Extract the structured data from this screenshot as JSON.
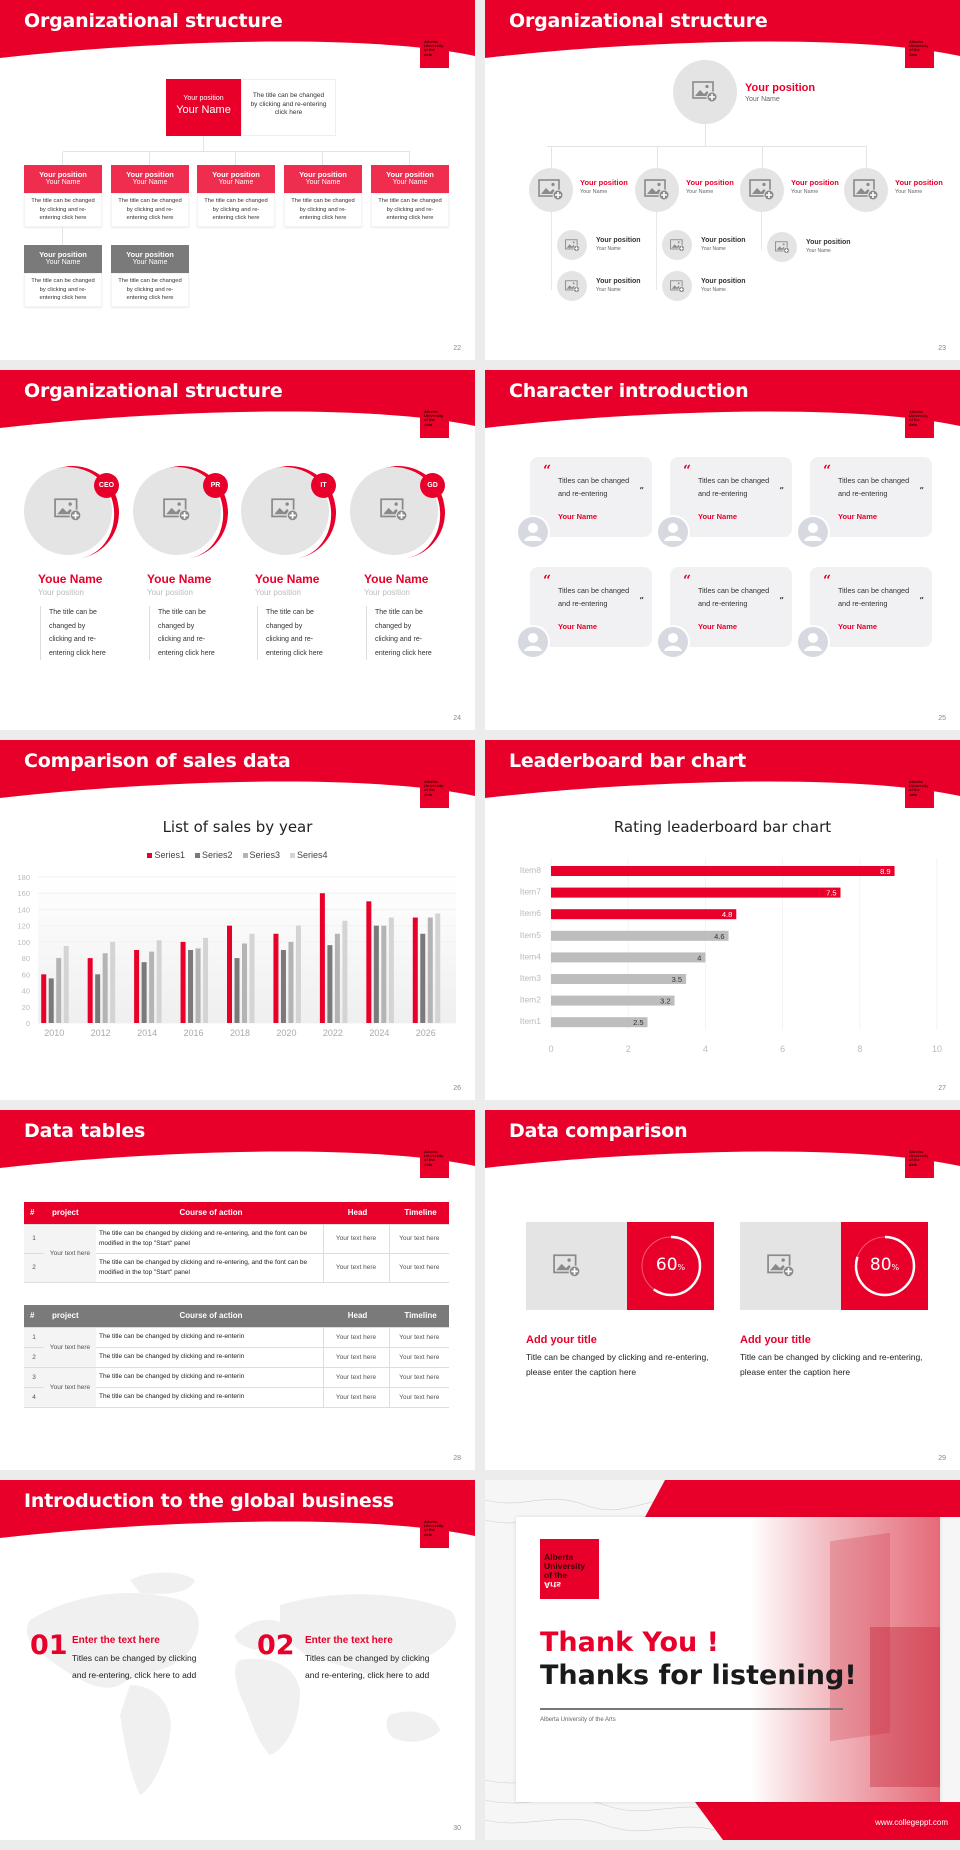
{
  "brand": {
    "accent": "#e8002a",
    "gray": "#7a7a7a",
    "logo_text": [
      "Alberta",
      "University",
      "of the",
      "Arts"
    ]
  },
  "slides": [
    {
      "page": "22",
      "title": "Organizational structure",
      "top": {
        "position": "Your position",
        "name": "Your Name",
        "desc": "The title can be changed by clicking and re-entering click here"
      },
      "nodes": [
        {
          "position": "Your position",
          "name": "Your Name",
          "desc": "The title can be changed by clicking and re-entering click here"
        },
        {
          "position": "Your position",
          "name": "Your Name",
          "desc": "The title can be changed by clicking and re-entering click here"
        },
        {
          "position": "Your position",
          "name": "Your Name",
          "desc": "The title can be changed by clicking and re-entering click here"
        },
        {
          "position": "Your position",
          "name": "Your Name",
          "desc": "The title can be changed by clicking and re-entering click here"
        },
        {
          "position": "Your position",
          "name": "Your Name",
          "desc": "The title can be changed by clicking and re-entering click here"
        },
        {
          "position": "Your position",
          "name": "Your Name",
          "desc": "The title can be changed by clicking and re-entering click here"
        },
        {
          "position": "Your position",
          "name": "Your Name",
          "desc": "The title can be changed by clicking and re-entering click here"
        }
      ]
    },
    {
      "page": "23",
      "title": "Organizational structure",
      "top": {
        "position": "Your position",
        "name": "Your Name"
      },
      "level2": [
        {
          "position": "Your position",
          "name": "Your Name"
        },
        {
          "position": "Your position",
          "name": "Your Name"
        },
        {
          "position": "Your position",
          "name": "Your Name"
        },
        {
          "position": "Your position",
          "name": "Your Name"
        }
      ],
      "level3": [
        {
          "position": "Your position",
          "name": "Your Name"
        },
        {
          "position": "Your position",
          "name": "Your Name"
        },
        {
          "position": "Your position",
          "name": "Your Name"
        },
        {
          "position": "Your position",
          "name": "Your Name"
        },
        {
          "position": "Your position",
          "name": "Your Name"
        }
      ]
    },
    {
      "page": "24",
      "title": "Organizational structure",
      "people": [
        {
          "badge": "CEO",
          "name": "Youe Name",
          "position": "Your position",
          "desc": "The title can be changed by clicking and re-entering click here"
        },
        {
          "badge": "PR",
          "name": "Youe Name",
          "position": "Your position",
          "desc": "The title can be changed by clicking and re-entering click here"
        },
        {
          "badge": "IT",
          "name": "Youe Name",
          "position": "Your position",
          "desc": "The title can be changed by clicking and re-entering click here"
        },
        {
          "badge": "GD",
          "name": "Youe Name",
          "position": "Your position",
          "desc": "The title can be changed by clicking and re-entering click here"
        }
      ]
    },
    {
      "page": "25",
      "title": "Character introduction",
      "cards": [
        {
          "quote": "Titles can be changed and re-entering",
          "name": "Your Name"
        },
        {
          "quote": "Titles can be changed and re-entering",
          "name": "Your Name"
        },
        {
          "quote": "Titles can be changed and re-entering",
          "name": "Your Name"
        },
        {
          "quote": "Titles can be changed and re-entering",
          "name": "Your Name"
        },
        {
          "quote": "Titles can be changed and re-entering",
          "name": "Your Name"
        },
        {
          "quote": "Titles can be changed and re-entering",
          "name": "Your Name"
        }
      ]
    },
    {
      "page": "26",
      "title": "Comparison of sales data"
    },
    {
      "page": "27",
      "title": "Leaderboard bar chart"
    },
    {
      "page": "28",
      "title": "Data tables",
      "table1": {
        "headers": [
          "#",
          "project",
          "Course of action",
          "Head",
          "Timeline"
        ],
        "group": "Your text here",
        "rows": [
          {
            "n": "1",
            "action": "The title can be changed by clicking and re-entering, and the font can be modified in the top \"Start\" panel",
            "head": "Your text here",
            "timeline": "Your text here"
          },
          {
            "n": "2",
            "action": "The title can be changed by clicking and re-entering, and the font can be modified in the top \"Start\" panel",
            "head": "Your text here",
            "timeline": "Your text here"
          }
        ]
      },
      "table2": {
        "headers": [
          "#",
          "project",
          "Course of action",
          "Head",
          "Timeline"
        ],
        "groups": [
          "Your text here",
          "Your text here"
        ],
        "rows": [
          {
            "n": "1",
            "action": "The title can be changed by clicking and re-enterin",
            "head": "Your text here",
            "timeline": "Your text here"
          },
          {
            "n": "2",
            "action": "The title can be changed by clicking and re-enterin",
            "head": "Your text here",
            "timeline": "Your text here"
          },
          {
            "n": "3",
            "action": "The title can be changed by clicking and re-enterin",
            "head": "Your text here",
            "timeline": "Your text here"
          },
          {
            "n": "4",
            "action": "The title can be changed by clicking and re-enterin",
            "head": "Your text here",
            "timeline": "Your text here"
          }
        ]
      }
    },
    {
      "page": "29",
      "title": "Data comparison",
      "items": [
        {
          "value": "60",
          "unit": "%",
          "title": "Add your title",
          "desc": "Title can be changed by clicking and re-entering, please enter the caption here"
        },
        {
          "value": "80",
          "unit": "%",
          "title": "Add your title",
          "desc": "Title can be changed by clicking and re-entering, please enter the caption here"
        }
      ]
    },
    {
      "page": "30",
      "title": "Introduction to the global business",
      "items": [
        {
          "num": "01",
          "heading": "Enter the text here",
          "desc": "Titles can be changed by clicking and re-entering, click here to add"
        },
        {
          "num": "02",
          "heading": "Enter the text here",
          "desc": "Titles can be changed by clicking and re-entering, click here to add"
        }
      ]
    },
    {
      "title_red": "Thank You !",
      "title_black": "Thanks for listening!",
      "subtitle": "Alberta University of the Arts",
      "url": "www.collegeppt.com"
    }
  ],
  "chart_data": [
    {
      "type": "bar",
      "title": "List of sales by year",
      "categories": [
        "2010",
        "2012",
        "2014",
        "2016",
        "2018",
        "2020",
        "2022",
        "2024",
        "2026"
      ],
      "series": [
        {
          "name": "Series1",
          "color": "#e8002a",
          "values": [
            60,
            80,
            90,
            100,
            120,
            110,
            160,
            150,
            130
          ]
        },
        {
          "name": "Series2",
          "color": "#7a7a7a",
          "values": [
            55,
            60,
            75,
            90,
            80,
            90,
            96,
            120,
            110
          ]
        },
        {
          "name": "Series3",
          "color": "#b4b4b4",
          "values": [
            80,
            86,
            88,
            92,
            98,
            100,
            110,
            120,
            130
          ]
        },
        {
          "name": "Series4",
          "color": "#d4d4d4",
          "values": [
            95,
            100,
            102,
            105,
            110,
            120,
            126,
            130,
            135
          ]
        }
      ],
      "yticks": [
        "0",
        "20",
        "40",
        "60",
        "80",
        "100",
        "120",
        "140",
        "160",
        "180"
      ],
      "ylim": [
        0,
        180
      ],
      "legend_position": "top",
      "grid": true,
      "xlabel": "",
      "ylabel": ""
    },
    {
      "type": "bar",
      "orientation": "horizontal",
      "title": "Rating leaderboard bar chart",
      "categories": [
        "Item8",
        "Item7",
        "Item6",
        "Item5",
        "Item4",
        "Item3",
        "Item2",
        "Item1"
      ],
      "values": [
        8.9,
        7.5,
        4.8,
        4.6,
        4,
        3.5,
        3.2,
        2.5
      ],
      "labels": [
        "8.9",
        "7.5",
        "4.8",
        "4.6",
        "4",
        "3.5",
        "3.2",
        "2.5"
      ],
      "highlight_top": 3,
      "xticks": [
        "0",
        "2",
        "4",
        "6",
        "8",
        "10"
      ],
      "xlim": [
        0,
        10
      ],
      "grid": true,
      "xlabel": "",
      "ylabel": ""
    }
  ]
}
